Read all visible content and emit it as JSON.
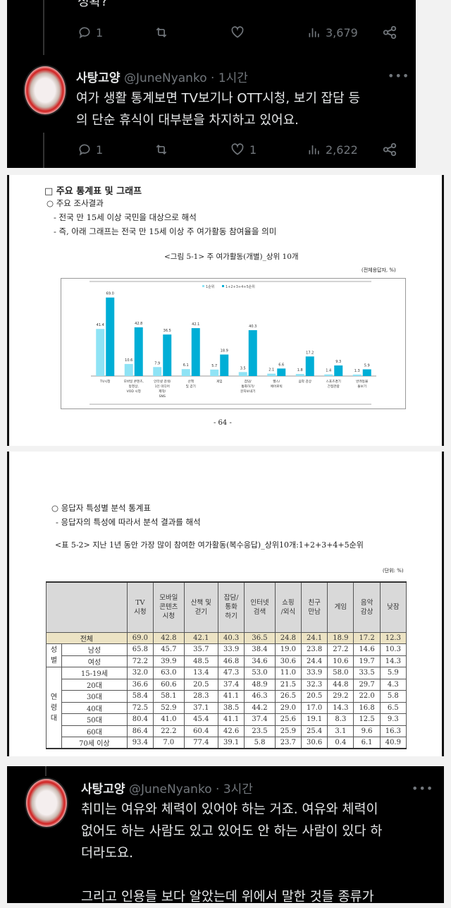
{
  "tweet1": {
    "cut_text": "정확?",
    "actions": {
      "replies": "1",
      "retweets": "",
      "likes": "",
      "views": "3,679"
    }
  },
  "tweet2": {
    "name": "사탕고양",
    "handle": "@JuneNyanko",
    "time": "· 1시간",
    "more": "•••",
    "lines": [
      "여가 생활 통계보면 TV보기나 OTT시청, 보기 잡담 등",
      "의 단순 휴식이 대부분을 차지하고 있어요."
    ],
    "actions": {
      "replies": "1",
      "retweets": "",
      "likes": "1",
      "views": "2,622"
    }
  },
  "doc1": {
    "heading": "□ 주요 통계표 및 그래프",
    "sub": "○ 주요 조사결과",
    "bullets": [
      "- 전국 만 15세 이상 국민을 대상으로 해석",
      "- 즉, 아래 그래프는 전국 만 15세 이상 주 여가활동 참여율을 의미"
    ],
    "figure_title": "<그림 5-1> 주 여가활동(개별)_상위 10개",
    "unit": "(전체응답자, %)",
    "page_number": "- 64 -"
  },
  "chart_data": {
    "type": "bar",
    "title": "<그림 5-1> 주 여가활동(개별)_상위 10개",
    "categories": [
      [
        "TV시청"
      ],
      [
        "모바일 콘텐츠,",
        "동영상,",
        "VOD 시청"
      ],
      [
        "인터넷 검색/",
        "1인 미디어",
        "제작/",
        "SNS"
      ],
      [
        "산책",
        "및 걷기"
      ],
      [
        "게임"
      ],
      [
        "잡담/",
        "통화하기/",
        "문자보내기"
      ],
      [
        "헬스/",
        "에어로빅"
      ],
      [
        "음악 감상"
      ],
      [
        "스포츠경기",
        "간접관람"
      ],
      [
        "반려동물",
        "돌보기"
      ]
    ],
    "series": [
      {
        "name": "1순위",
        "color": "#8fe3f5",
        "values": [
          41.4,
          10.6,
          7.9,
          6.1,
          5.7,
          3.5,
          2.1,
          1.8,
          1.4,
          1.3
        ]
      },
      {
        "name": "1+2+3+4+5순위",
        "color": "#00aed6",
        "values": [
          69.0,
          42.8,
          36.5,
          42.1,
          18.9,
          40.3,
          6.6,
          17.2,
          9.3,
          5.9
        ]
      }
    ],
    "ylim": [
      0,
      75
    ],
    "legend": "top-center"
  },
  "doc2": {
    "sub": "○ 응답자 특성별 분석 통계표",
    "bullet": "- 응답자의 특성에 따라서 분석 결과를 해석",
    "table_title": "<표 5-2> 지난 1년 동안 가장 많이 참여한 여가활동(복수응답)_상위10개:1+2+3+4+5순위",
    "unit": "(단위: %)",
    "columns": [
      "TV\n시청",
      "모바일\n콘텐츠\n시청",
      "산책 및\n걷기",
      "잡담/\n통화\n하기",
      "인터넷\n검색",
      "쇼핑\n/외식",
      "친구\n만남",
      "게임",
      "음악\n감상",
      "낮잠"
    ],
    "total": {
      "label": "전체",
      "values": [
        "69.0",
        "42.8",
        "42.1",
        "40.3",
        "36.5",
        "24.8",
        "24.1",
        "18.9",
        "17.2",
        "12.3"
      ]
    },
    "groups": [
      {
        "label": "성\n별",
        "rows": [
          {
            "label": "남성",
            "values": [
              "65.8",
              "45.7",
              "35.7",
              "33.9",
              "38.4",
              "19.0",
              "23.8",
              "27.2",
              "14.6",
              "10.3"
            ]
          },
          {
            "label": "여성",
            "values": [
              "72.2",
              "39.9",
              "48.5",
              "46.8",
              "34.6",
              "30.6",
              "24.4",
              "10.6",
              "19.7",
              "14.3"
            ]
          }
        ]
      },
      {
        "label": "연\n령\n대",
        "rows": [
          {
            "label": "15-19세",
            "values": [
              "32.0",
              "63.0",
              "13.4",
              "47.3",
              "53.0",
              "11.0",
              "33.9",
              "58.0",
              "33.5",
              "5.9"
            ]
          },
          {
            "label": "20대",
            "values": [
              "36.6",
              "60.6",
              "20.5",
              "37.4",
              "48.9",
              "21.5",
              "32.3",
              "44.8",
              "29.7",
              "4.3"
            ]
          },
          {
            "label": "30대",
            "values": [
              "58.4",
              "58.1",
              "28.3",
              "41.1",
              "46.3",
              "26.5",
              "20.5",
              "29.2",
              "22.0",
              "5.8"
            ]
          },
          {
            "label": "40대",
            "values": [
              "72.5",
              "52.9",
              "37.1",
              "38.5",
              "44.2",
              "29.0",
              "17.0",
              "14.3",
              "16.8",
              "6.5"
            ]
          },
          {
            "label": "50대",
            "values": [
              "80.4",
              "41.0",
              "45.4",
              "41.1",
              "37.4",
              "25.6",
              "19.1",
              "8.3",
              "12.5",
              "9.3"
            ]
          },
          {
            "label": "60대",
            "values": [
              "86.4",
              "22.2",
              "60.4",
              "42.6",
              "23.5",
              "25.9",
              "25.4",
              "3.1",
              "9.6",
              "16.3"
            ]
          },
          {
            "label": "70세 이상",
            "values": [
              "93.4",
              "7.0",
              "77.4",
              "39.1",
              "5.8",
              "23.7",
              "30.6",
              "0.4",
              "6.1",
              "40.9"
            ]
          }
        ]
      }
    ]
  },
  "tweet3": {
    "name": "사탕고양",
    "handle": "@JuneNyanko",
    "time": "· 3시간",
    "more": "•••",
    "lines": [
      "취미는 여유와 체력이 있어야 하는 거죠. 여유와 체력이",
      "없어도 하는 사람도 있고 있어도 안 하는 사람이 있다 하",
      "더라도요.",
      "",
      "그리고 인용들 보다 알았는데 위에서 말한 것들 종류가"
    ]
  }
}
